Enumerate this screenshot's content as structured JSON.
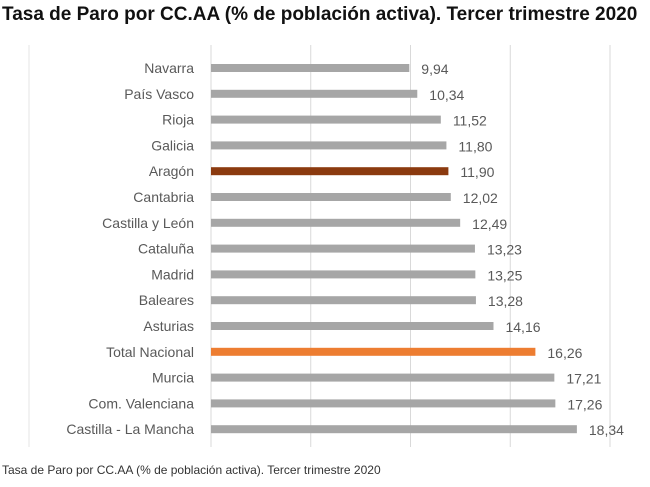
{
  "title": "Tasa de Paro por CC.AA (% de población activa). Tercer trimestre 2020",
  "caption": "Tasa de Paro por CC.AA (% de población activa). Tercer trimestre 2020",
  "chart_data": {
    "type": "bar",
    "orientation": "horizontal",
    "title": "Tasa de Paro por CC.AA (% de población activa). Tercer trimestre 2020",
    "xlabel": "",
    "ylabel": "",
    "xlim": [
      0,
      20
    ],
    "grid": true,
    "categories": [
      "Navarra",
      "País Vasco",
      "Rioja",
      "Galicia",
      "Aragón",
      "Cantabria",
      "Castilla y León",
      "Cataluña",
      "Madrid",
      "Baleares",
      "Asturias",
      "Total Nacional",
      "Murcia",
      "Com. Valenciana",
      "Castilla - La Mancha"
    ],
    "values": [
      9.94,
      10.34,
      11.52,
      11.8,
      11.9,
      12.02,
      12.49,
      13.23,
      13.25,
      13.28,
      14.16,
      16.26,
      17.21,
      17.26,
      18.34
    ],
    "value_labels": [
      "9,94",
      "10,34",
      "11,52",
      "11,80",
      "11,90",
      "12,02",
      "12,49",
      "13,23",
      "13,25",
      "13,28",
      "14,16",
      "16,26",
      "17,21",
      "17,26",
      "18,34"
    ],
    "colors": {
      "default": "#a6a6a6",
      "Aragón": "#8b3a0f",
      "Total Nacional": "#ed7d31"
    }
  }
}
